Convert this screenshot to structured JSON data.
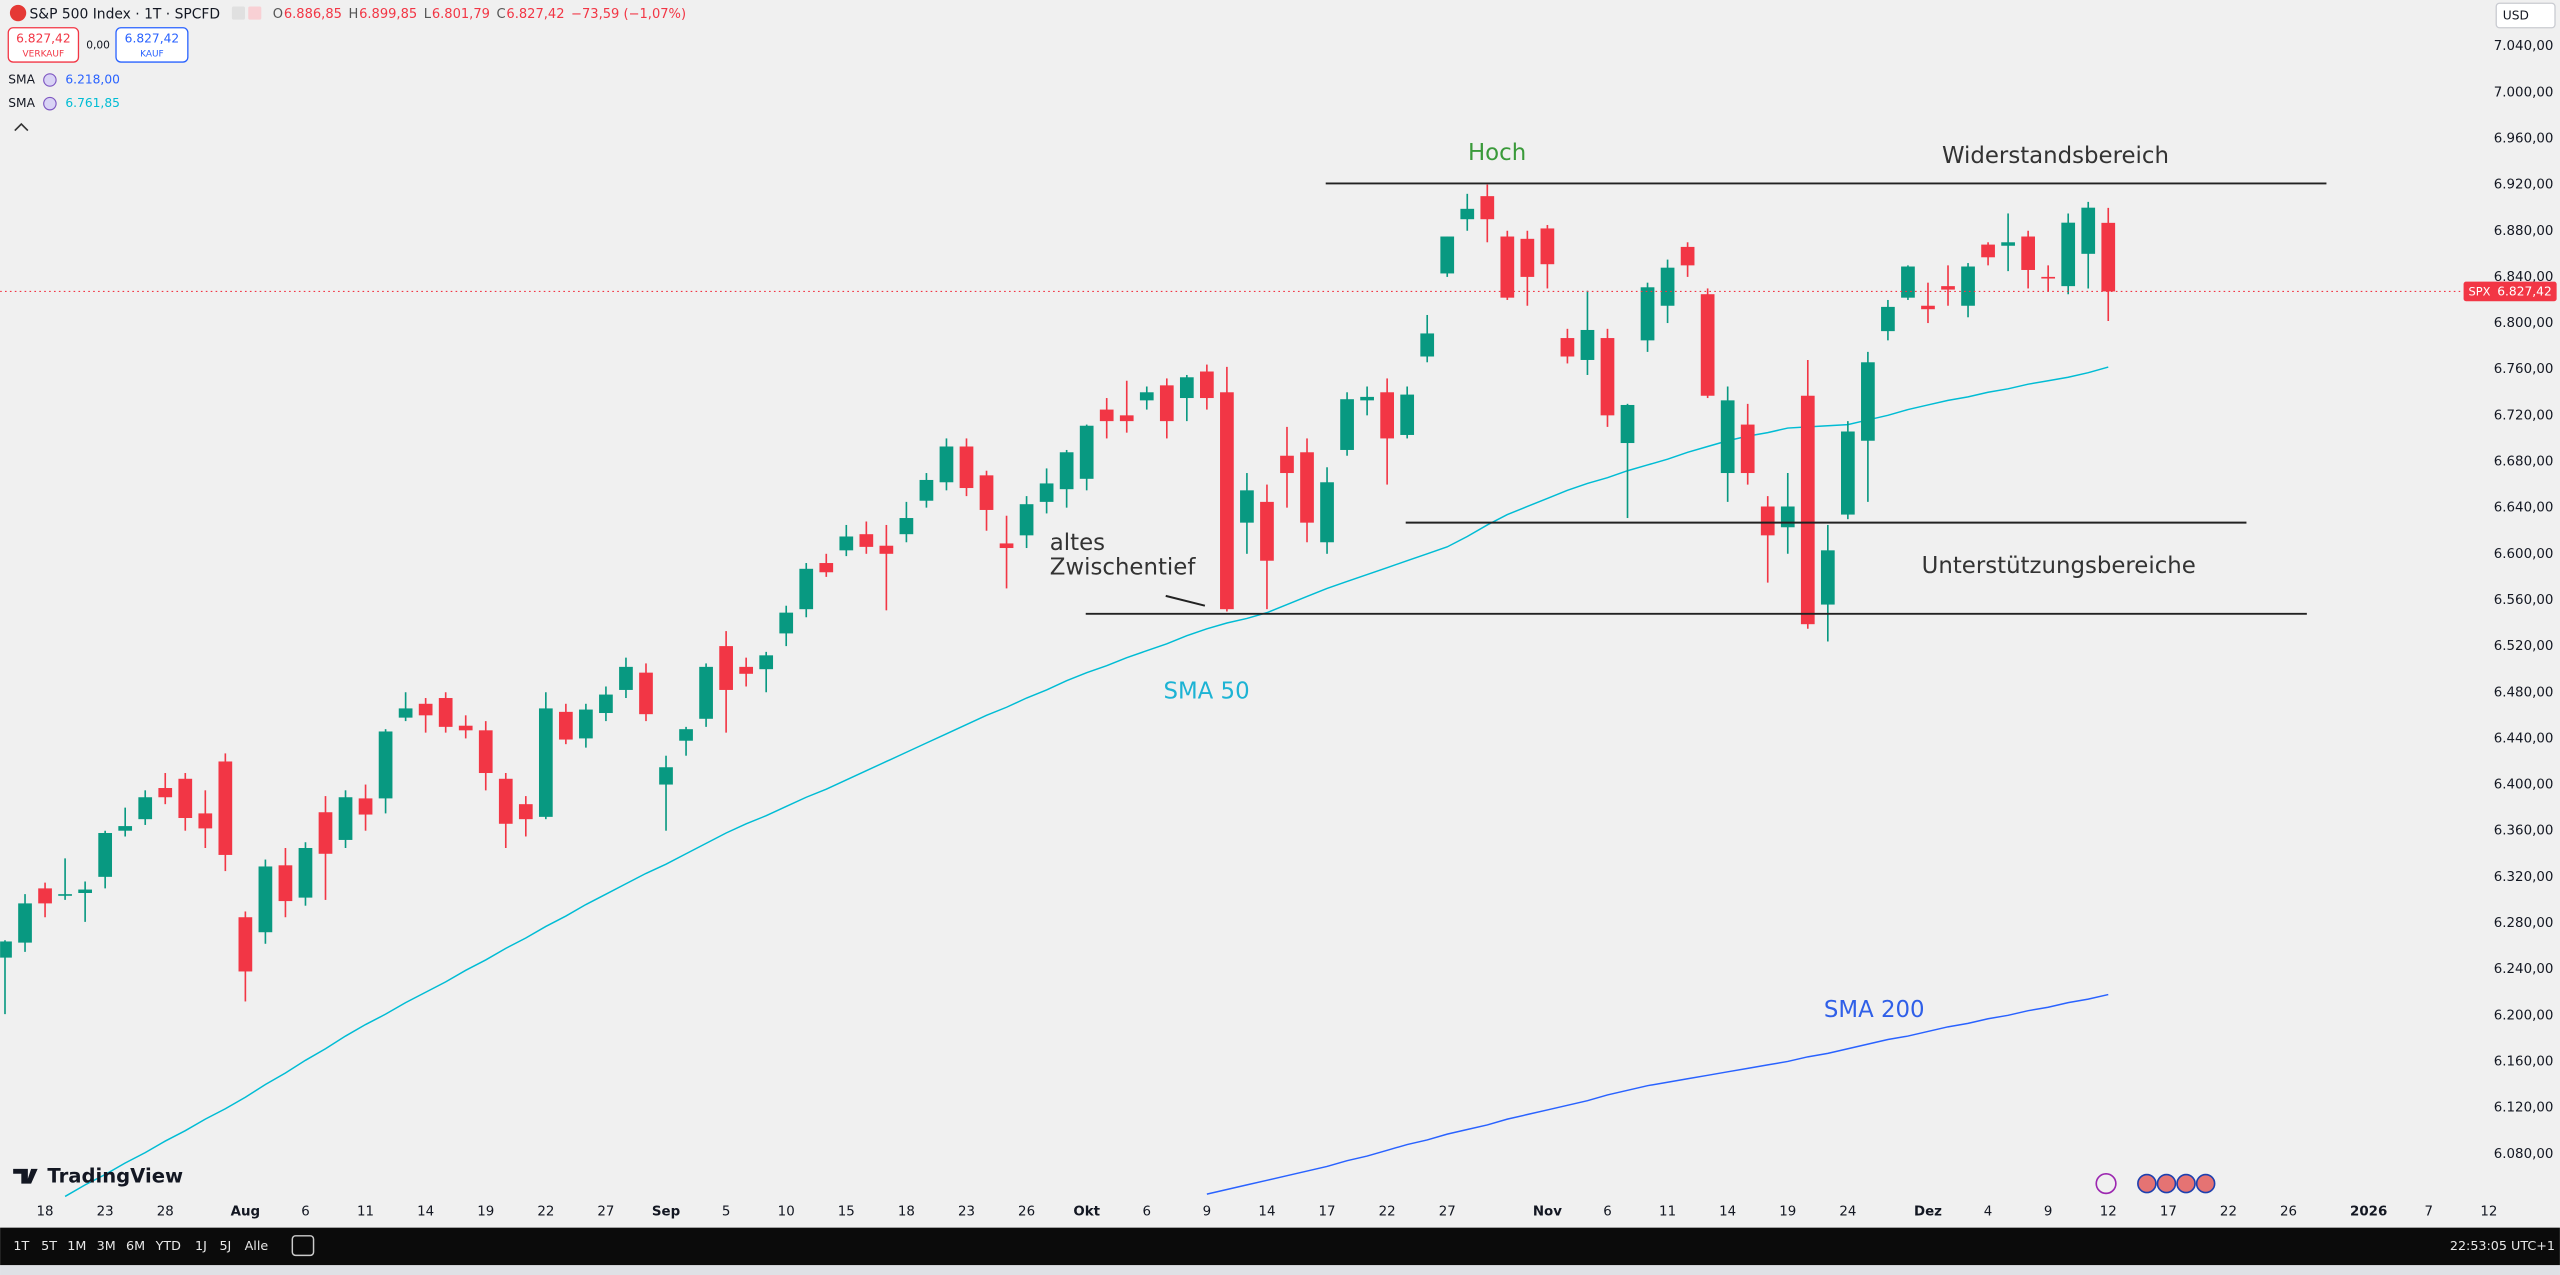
{
  "chart_data": {
    "type": "candlestick",
    "title": "S&P 500 Index · 1T · SPCFD",
    "categories": [
      null,
      null,
      "18",
      null,
      null,
      "23",
      null,
      null,
      "28",
      null,
      null,
      null,
      "Aug",
      null,
      null,
      "6",
      null,
      null,
      "11",
      null,
      null,
      "14",
      null,
      null,
      "19",
      null,
      null,
      "22",
      null,
      null,
      "27",
      null,
      null,
      "Sep",
      null,
      null,
      "5",
      null,
      null,
      "10",
      null,
      null,
      "15",
      null,
      null,
      "18",
      null,
      null,
      "23",
      null,
      null,
      "26",
      null,
      null,
      "Okt",
      null,
      null,
      "6",
      null,
      null,
      "9",
      null,
      null,
      "14",
      null,
      null,
      "17",
      null,
      null,
      "22",
      null,
      null,
      "27",
      null,
      null,
      null,
      null,
      "Nov",
      null,
      null,
      "6",
      null,
      null,
      "11",
      null,
      null,
      "14",
      null,
      null,
      "19",
      null,
      null,
      "24",
      null,
      null,
      null,
      "Dez",
      null,
      null,
      "4",
      null,
      null,
      "9",
      null,
      null,
      "12",
      null,
      null,
      "17",
      null,
      null,
      "22",
      null,
      null,
      "26",
      null,
      null,
      null,
      "2026",
      null,
      null,
      "7",
      null,
      null,
      "12"
    ],
    "open": [
      6250,
      6263,
      6310,
      6305,
      6306,
      6320,
      6360,
      6370,
      6397,
      6405,
      6375,
      6420,
      6285,
      6272,
      6330,
      6302,
      6376,
      6352,
      6388,
      6388,
      6458,
      6470,
      6475,
      6451,
      6447,
      6405,
      6383,
      6372,
      6463,
      6440,
      6462,
      6482,
      6497,
      6400,
      6438,
      6457,
      6520,
      6502,
      6500,
      6531,
      6552,
      6592,
      6603,
      6617,
      6607,
      6617,
      6646,
      6662,
      6693,
      6668,
      6609,
      6616,
      6645,
      6656,
      6665,
      6725,
      6720,
      6733,
      6746,
      6735,
      6758,
      6740,
      6627,
      6645,
      6685,
      6688,
      6610,
      6690,
      6733,
      6740,
      6703,
      6771,
      6843,
      6890,
      6910,
      6875,
      6873,
      6882,
      6787,
      6768,
      6787,
      6696,
      6785,
      6815,
      6866,
      6825,
      6670,
      6712,
      6641,
      6623,
      6737,
      6556,
      6634,
      6698,
      6793,
      6822,
      6815,
      6832,
      6815,
      6868,
      6867,
      6875,
      6840,
      6832,
      6860,
      6886.85,
      null,
      null,
      null,
      null,
      null,
      null,
      null,
      null,
      null,
      null,
      null,
      null,
      null,
      null,
      null,
      null,
      null,
      null,
      null
    ],
    "high": [
      6265,
      6305,
      6315,
      6336,
      6316,
      6360,
      6380,
      6395,
      6410,
      6410,
      6395,
      6427,
      6290,
      6335,
      6345,
      6350,
      6390,
      6395,
      6400,
      6448,
      6480,
      6475,
      6480,
      6460,
      6455,
      6410,
      6390,
      6480,
      6470,
      6470,
      6485,
      6510,
      6505,
      6425,
      6450,
      6505,
      6533,
      6510,
      6515,
      6555,
      6592,
      6600,
      6625,
      6628,
      6625,
      6645,
      6670,
      6700,
      6700,
      6672,
      6633,
      6650,
      6674,
      6690,
      6712,
      6735,
      6750,
      6745,
      6752,
      6755,
      6764,
      6762,
      6670,
      6660,
      6710,
      6700,
      6675,
      6740,
      6745,
      6752,
      6745,
      6807,
      6875,
      6912,
      6920,
      6880,
      6880,
      6885,
      6795,
      6828,
      6795,
      6730,
      6835,
      6855,
      6870,
      6830,
      6745,
      6730,
      6650,
      6670,
      6768,
      6625,
      6715,
      6775,
      6820,
      6850,
      6835,
      6850,
      6852,
      6870,
      6895,
      6880,
      6850,
      6895,
      6905,
      6899.85,
      null,
      null,
      null,
      null,
      null,
      null,
      null,
      null,
      null,
      null,
      null,
      null,
      null,
      null,
      null,
      null,
      null,
      null,
      null
    ],
    "low": [
      6201,
      6255,
      6285,
      6300,
      6281,
      6310,
      6355,
      6365,
      6383,
      6360,
      6345,
      6325,
      6212,
      6262,
      6285,
      6295,
      6300,
      6345,
      6360,
      6375,
      6455,
      6445,
      6445,
      6440,
      6395,
      6345,
      6355,
      6370,
      6435,
      6432,
      6455,
      6475,
      6455,
      6360,
      6425,
      6450,
      6445,
      6485,
      6480,
      6520,
      6545,
      6580,
      6598,
      6600,
      6551,
      6610,
      6640,
      6655,
      6650,
      6620,
      6570,
      6605,
      6635,
      6640,
      6655,
      6700,
      6705,
      6725,
      6700,
      6715,
      6725,
      6550,
      6600,
      6552,
      6640,
      6610,
      6600,
      6685,
      6720,
      6660,
      6700,
      6766,
      6840,
      6880,
      6870,
      6820,
      6815,
      6830,
      6765,
      6755,
      6710,
      6631,
      6775,
      6800,
      6840,
      6735,
      6645,
      6660,
      6575,
      6600,
      6535,
      6524,
      6630,
      6645,
      6785,
      6820,
      6800,
      6815,
      6805,
      6850,
      6845,
      6830,
      6827,
      6825,
      6830,
      6801.79,
      null,
      null,
      null,
      null,
      null,
      null,
      null,
      null,
      null,
      null,
      null,
      null,
      null,
      null,
      null,
      null,
      null,
      null,
      null
    ],
    "close": [
      6264,
      6297,
      6297,
      6305,
      6309,
      6358,
      6364,
      6389,
      6389,
      6371,
      6362,
      6339,
      6238,
      6329,
      6299,
      6345,
      6340,
      6389,
      6374,
      6446,
      6466,
      6460,
      6450,
      6447,
      6410,
      6366,
      6370,
      6466,
      6439,
      6465,
      6478,
      6502,
      6461,
      6415,
      6448,
      6502,
      6482,
      6496,
      6512,
      6549,
      6587,
      6584,
      6615,
      6606,
      6600,
      6631,
      6664,
      6693,
      6657,
      6638,
      6605,
      6643,
      6661,
      6688,
      6711,
      6715,
      6715,
      6740,
      6715,
      6753,
      6735,
      6552,
      6655,
      6594,
      6670,
      6627,
      6662,
      6734,
      6736,
      6700,
      6738,
      6791,
      6875,
      6899,
      6890,
      6822,
      6840,
      6851,
      6771,
      6794,
      6720,
      6729,
      6831,
      6848,
      6850,
      6737,
      6733,
      6670,
      6616,
      6641,
      6539,
      6603,
      6706,
      6766,
      6814,
      6849,
      6812,
      6829,
      6849,
      6857,
      6870,
      6846,
      6839,
      6887,
      6900,
      6827.42,
      null,
      null,
      null,
      null,
      null,
      null,
      null,
      null,
      null,
      null,
      null,
      null,
      null,
      null,
      null,
      null,
      null,
      null,
      null
    ],
    "up_color": "#089981",
    "down_color": "#f23645",
    "ylim": [
      6040,
      7080
    ],
    "yticks": [
      {
        "value": 7040,
        "label": "7.040,00"
      },
      {
        "value": 7000,
        "label": "7.000,00"
      },
      {
        "value": 6960,
        "label": "6.960,00"
      },
      {
        "value": 6920,
        "label": "6.920,00"
      },
      {
        "value": 6880,
        "label": "6.880,00"
      },
      {
        "value": 6840,
        "label": "6.840,00"
      },
      {
        "value": 6800,
        "label": "6.800,00"
      },
      {
        "value": 6760,
        "label": "6.760,00"
      },
      {
        "value": 6720,
        "label": "6.720,00"
      },
      {
        "value": 6680,
        "label": "6.680,00"
      },
      {
        "value": 6640,
        "label": "6.640,00"
      },
      {
        "value": 6600,
        "label": "6.600,00"
      },
      {
        "value": 6560,
        "label": "6.560,00"
      },
      {
        "value": 6520,
        "label": "6.520,00"
      },
      {
        "value": 6480,
        "label": "6.480,00"
      },
      {
        "value": 6440,
        "label": "6.440,00"
      },
      {
        "value": 6400,
        "label": "6.400,00"
      },
      {
        "value": 6360,
        "label": "6.360,00"
      },
      {
        "value": 6320,
        "label": "6.320,00"
      },
      {
        "value": 6280,
        "label": "6.280,00"
      },
      {
        "value": 6240,
        "label": "6.240,00"
      },
      {
        "value": 6200,
        "label": "6.200,00"
      },
      {
        "value": 6160,
        "label": "6.160,00"
      },
      {
        "value": 6120,
        "label": "6.120,00"
      },
      {
        "value": 6080,
        "label": "6.080,00"
      }
    ],
    "currency": "USD",
    "last_price": {
      "symbol": "SPX",
      "label": "6.827,42"
    },
    "ohlc": [
      {
        "label": "O",
        "value": "6.886,85"
      },
      {
        "label": "H",
        "value": "6.899,85"
      },
      {
        "label": "L",
        "value": "6.801,79"
      },
      {
        "label": "C",
        "value": "6.827,42"
      }
    ],
    "change": "−73,59 (−1,07%)",
    "trade": {
      "sell_price": "6.827,42",
      "sell_label": "VERKAUF",
      "spread": "0,00",
      "buy_price": "6.827,42",
      "buy_label": "KAUF"
    },
    "indicators": [
      {
        "name": "SMA",
        "value_label": "6.218,00",
        "color": "#2962ff",
        "values": [
          null,
          null,
          null,
          null,
          null,
          null,
          null,
          null,
          null,
          null,
          null,
          null,
          null,
          null,
          null,
          null,
          null,
          null,
          null,
          null,
          null,
          null,
          null,
          null,
          null,
          null,
          null,
          null,
          null,
          null,
          null,
          null,
          null,
          null,
          null,
          null,
          null,
          null,
          null,
          null,
          null,
          null,
          null,
          null,
          null,
          null,
          null,
          null,
          null,
          null,
          null,
          null,
          null,
          null,
          null,
          null,
          null,
          null,
          null,
          null,
          6045,
          6049,
          6053,
          6057,
          6061,
          6065,
          6069,
          6074,
          6078,
          6083,
          6088,
          6092,
          6097,
          6101,
          6105,
          6110,
          6114,
          6118,
          6122,
          6126,
          6131,
          6135,
          6139,
          6142,
          6145,
          6148,
          6151,
          6154,
          6157,
          6160,
          6164,
          6167,
          6171,
          6175,
          6179,
          6182,
          6186,
          6190,
          6193,
          6197,
          6200,
          6204,
          6207,
          6211,
          6214,
          6218,
          null,
          null,
          null,
          null,
          null,
          null,
          null,
          null,
          null,
          null,
          null,
          null,
          null,
          null,
          null,
          null,
          null,
          null,
          null
        ]
      },
      {
        "name": "SMA",
        "value_label": "6.761,85",
        "color": "#00bcd4",
        "values": [
          null,
          null,
          null,
          6043,
          6053,
          6062,
          6072,
          6081,
          6091,
          6100,
          6110,
          6119,
          6129,
          6140,
          6150,
          6161,
          6171,
          6182,
          6192,
          6201,
          6211,
          6220,
          6229,
          6239,
          6248,
          6258,
          6267,
          6277,
          6286,
          6296,
          6305,
          6314,
          6323,
          6331,
          6340,
          6349,
          6358,
          6366,
          6373,
          6381,
          6389,
          6396,
          6404,
          6412,
          6420,
          6428,
          6436,
          6444,
          6452,
          6460,
          6467,
          6475,
          6482,
          6490,
          6497,
          6503,
          6510,
          6516,
          6522,
          6529,
          6535,
          6540,
          6544,
          6549,
          6556,
          6563,
          6570,
          6576,
          6582,
          6588,
          6594,
          6600,
          6606,
          6615,
          6625,
          6634,
          6641,
          6648,
          6655,
          6661,
          6666,
          6672,
          6677,
          6682,
          6688,
          6693,
          6698,
          6702,
          6705,
          6709,
          6710,
          6711,
          6712,
          6716,
          6720,
          6725,
          6729,
          6733,
          6736,
          6740,
          6743,
          6747,
          6750,
          6753,
          6757,
          6761.85,
          null,
          null,
          null,
          null,
          null,
          null,
          null,
          null,
          null,
          null,
          null,
          null,
          null,
          null,
          null,
          null,
          null,
          null,
          null
        ]
      }
    ],
    "levels": [
      6921,
      6627,
      6548
    ],
    "annotations": [
      {
        "lines": [
          "Hoch"
        ],
        "color": "#3a9a3a"
      },
      {
        "lines": [
          "Widerstandsbereich"
        ],
        "color": "#333333"
      },
      {
        "lines": [
          "altes",
          "Zwischentief"
        ],
        "color": "#333333"
      },
      {
        "lines": [
          "Unterstützungsbereiche"
        ],
        "color": "#333333"
      },
      {
        "lines": [
          "SMA 50"
        ],
        "color": "#1cb3d4"
      },
      {
        "lines": [
          "SMA 200"
        ],
        "color": "#2f5fe8"
      }
    ]
  },
  "brand": "TradingView",
  "toolbar": {
    "ranges": [
      "1T",
      "5T",
      "1M",
      "3M",
      "6M",
      "YTD",
      "1J",
      "5J",
      "Alle"
    ],
    "clock": "22:53:05 UTC+1"
  }
}
